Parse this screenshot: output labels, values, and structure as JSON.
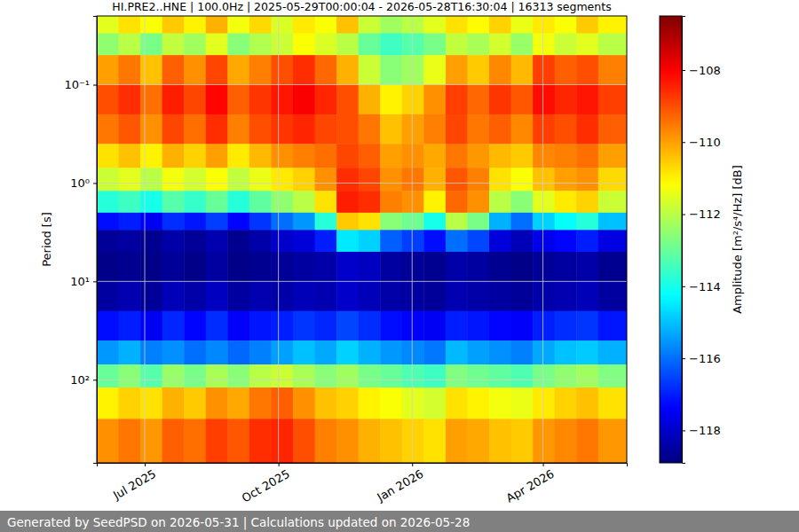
{
  "chart_data": {
    "type": "heatmap",
    "title": "HI.PRE2..HNE | 100.0Hz | 2025-05-29T00:00:04 - 2026-05-28T16:30:04 | 16313 segments",
    "y_label": "Period [s]",
    "log": "y",
    "grid": true,
    "xlim": [
      "2025-05-29T00:00:04",
      "2026-05-28T16:30:04"
    ],
    "xticks": [
      {
        "value": "2025-07-01",
        "label": "Jul 2025"
      },
      {
        "value": "2025-10-01",
        "label": "Oct 2025"
      },
      {
        "value": "2026-01-01",
        "label": "Jan 2026"
      },
      {
        "value": "2026-04-01",
        "label": "Apr 2026"
      }
    ],
    "ylim": [
      0.02,
      700
    ],
    "yticks": [
      {
        "value": 0.1,
        "label": "10⁻¹"
      },
      {
        "value": 1,
        "label": "10⁰"
      },
      {
        "value": 10,
        "label": "10¹"
      },
      {
        "value": 100,
        "label": "10²"
      }
    ],
    "x_bins": [
      "2025-05-29T00:00:04",
      "2025-06-13",
      "2025-06-28",
      "2025-07-13",
      "2025-07-28",
      "2025-08-12",
      "2025-08-27",
      "2025-09-11",
      "2025-09-26",
      "2025-10-11",
      "2025-10-26",
      "2025-11-10",
      "2025-11-25",
      "2025-12-10",
      "2025-12-25",
      "2026-01-09",
      "2026-01-24",
      "2026-02-08",
      "2026-02-23",
      "2026-03-10",
      "2026-03-25",
      "2026-04-09",
      "2026-04-24",
      "2026-05-09",
      "2026-05-28T16:30:04"
    ],
    "y_bins": [
      0.02,
      0.03,
      0.05,
      0.1,
      0.2,
      0.4,
      0.7,
      1.2,
      2,
      3,
      5,
      10,
      20,
      40,
      70,
      120,
      250,
      700
    ],
    "values": [
      [
        -111.5,
        -110.8,
        -111.2,
        -110.5,
        -111.0,
        -110.2,
        -111.3,
        -110.7,
        -111.6,
        -110.9,
        -111.2,
        -110.4,
        -111.8,
        -112.3,
        -112.0,
        -111.5,
        -110.8,
        -111.1,
        -110.6,
        -111.4,
        -110.9,
        -111.2,
        -110.5,
        -111.0
      ],
      [
        -112.5,
        -112.0,
        -112.8,
        -111.9,
        -112.3,
        -111.5,
        -112.6,
        -112.1,
        -111.8,
        -111.2,
        -111.6,
        -112.0,
        -113.0,
        -113.5,
        -113.2,
        -112.8,
        -111.9,
        -112.2,
        -111.7,
        -112.4,
        -111.3,
        -111.8,
        -111.5,
        -112.0
      ],
      [
        -110.0,
        -109.5,
        -110.4,
        -109.2,
        -109.8,
        -108.9,
        -110.1,
        -109.6,
        -109.0,
        -108.6,
        -109.3,
        -110.2,
        -111.8,
        -112.6,
        -112.3,
        -111.4,
        -110.0,
        -110.5,
        -109.7,
        -110.3,
        -108.8,
        -109.2,
        -109.0,
        -109.6
      ],
      [
        -109.0,
        -108.6,
        -109.4,
        -108.4,
        -108.9,
        -108.1,
        -109.2,
        -108.7,
        -108.3,
        -108.0,
        -108.5,
        -109.0,
        -110.2,
        -111.0,
        -110.6,
        -109.8,
        -108.8,
        -109.3,
        -108.7,
        -109.1,
        -108.2,
        -108.5,
        -108.3,
        -108.8
      ],
      [
        -109.5,
        -109.1,
        -109.8,
        -108.9,
        -109.4,
        -108.6,
        -109.6,
        -109.0,
        -108.7,
        -108.5,
        -108.9,
        -109.0,
        -109.5,
        -110.4,
        -110.0,
        -109.6,
        -108.9,
        -109.5,
        -109.2,
        -109.7,
        -108.8,
        -109.0,
        -108.6,
        -109.2
      ],
      [
        -110.8,
        -110.4,
        -111.0,
        -110.2,
        -110.6,
        -110.0,
        -110.9,
        -110.3,
        -109.8,
        -109.6,
        -109.4,
        -108.9,
        -109.2,
        -110.0,
        -109.8,
        -110.1,
        -109.5,
        -109.9,
        -110.3,
        -110.5,
        -109.7,
        -109.6,
        -109.4,
        -110.0
      ],
      [
        -111.8,
        -111.5,
        -112.0,
        -111.3,
        -111.7,
        -111.2,
        -111.9,
        -111.4,
        -110.9,
        -110.6,
        -109.8,
        -108.6,
        -108.9,
        -109.8,
        -109.5,
        -110.2,
        -109.1,
        -109.6,
        -110.8,
        -111.2,
        -110.4,
        -110.0,
        -109.8,
        -110.7
      ],
      [
        -113.8,
        -113.5,
        -114.0,
        -113.2,
        -113.6,
        -113.0,
        -113.8,
        -113.1,
        -112.5,
        -112.0,
        -110.8,
        -108.4,
        -108.6,
        -109.6,
        -109.8,
        -111.0,
        -109.3,
        -109.8,
        -112.0,
        -112.6,
        -111.5,
        -110.9,
        -110.6,
        -111.8
      ],
      [
        -117.2,
        -117.0,
        -117.5,
        -116.8,
        -117.1,
        -116.6,
        -117.3,
        -116.7,
        -116.0,
        -115.5,
        -113.8,
        -110.5,
        -110.8,
        -112.6,
        -112.9,
        -114.0,
        -112.0,
        -112.8,
        -115.2,
        -116.0,
        -114.8,
        -114.2,
        -113.8,
        -115.0
      ],
      [
        -118.6,
        -118.5,
        -118.7,
        -118.4,
        -118.6,
        -118.3,
        -118.7,
        -118.4,
        -118.0,
        -117.8,
        -117.0,
        -114.5,
        -114.8,
        -116.2,
        -116.6,
        -117.2,
        -116.0,
        -116.5,
        -117.8,
        -118.2,
        -117.6,
        -117.3,
        -117.0,
        -117.7
      ],
      [
        -118.8,
        -118.7,
        -118.8,
        -118.6,
        -118.8,
        -118.5,
        -118.8,
        -118.7,
        -118.6,
        -118.5,
        -118.4,
        -118.0,
        -118.1,
        -118.5,
        -118.6,
        -118.7,
        -118.4,
        -118.5,
        -118.7,
        -118.8,
        -118.6,
        -118.5,
        -118.4,
        -118.7
      ],
      [
        -118.5,
        -118.3,
        -118.6,
        -118.2,
        -118.4,
        -118.1,
        -118.5,
        -118.3,
        -118.4,
        -118.2,
        -118.3,
        -118.0,
        -118.2,
        -118.4,
        -118.5,
        -118.6,
        -118.3,
        -118.4,
        -118.5,
        -118.6,
        -118.4,
        -118.3,
        -118.2,
        -118.5
      ],
      [
        -117.2,
        -117.0,
        -117.5,
        -116.9,
        -117.3,
        -116.8,
        -117.4,
        -117.1,
        -117.0,
        -116.7,
        -116.9,
        -116.5,
        -116.8,
        -117.2,
        -117.4,
        -117.5,
        -117.0,
        -117.1,
        -117.3,
        -117.4,
        -117.0,
        -116.8,
        -116.7,
        -117.1
      ],
      [
        -115.5,
        -115.2,
        -115.8,
        -115.6,
        -116.0,
        -115.7,
        -116.1,
        -115.8,
        -115.4,
        -115.0,
        -115.3,
        -114.8,
        -115.2,
        -115.5,
        -115.7,
        -115.9,
        -115.1,
        -115.4,
        -115.6,
        -115.8,
        -115.3,
        -115.0,
        -114.9,
        -115.2
      ],
      [
        -113.0,
        -112.6,
        -113.2,
        -112.4,
        -112.8,
        -112.2,
        -112.6,
        -112.0,
        -111.8,
        -112.2,
        -112.6,
        -112.3,
        -112.8,
        -113.0,
        -113.3,
        -113.5,
        -112.7,
        -112.9,
        -113.1,
        -113.3,
        -112.8,
        -112.5,
        -112.3,
        -112.7
      ],
      [
        -111.0,
        -110.6,
        -110.8,
        -110.2,
        -110.5,
        -109.8,
        -110.1,
        -109.5,
        -109.2,
        -109.8,
        -110.4,
        -110.6,
        -111.0,
        -111.2,
        -111.5,
        -111.7,
        -110.8,
        -111.0,
        -111.3,
        -111.4,
        -110.9,
        -110.6,
        -110.4,
        -110.8
      ],
      [
        -109.8,
        -109.5,
        -109.9,
        -109.2,
        -109.4,
        -108.8,
        -109.1,
        -108.6,
        -108.5,
        -109.0,
        -109.6,
        -109.8,
        -110.2,
        -110.4,
        -110.6,
        -110.8,
        -110.0,
        -110.1,
        -110.4,
        -110.5,
        -109.9,
        -109.7,
        -109.5,
        -109.9
      ]
    ],
    "colorbar": {
      "label": "Amplitude [m²/s⁴/Hz] [dB]",
      "range": [
        -118.9,
        -106.5
      ],
      "ticks": [
        {
          "value": -108,
          "label": "−108"
        },
        {
          "value": -110,
          "label": "−110"
        },
        {
          "value": -112,
          "label": "−112"
        },
        {
          "value": -114,
          "label": "−114"
        },
        {
          "value": -116,
          "label": "−116"
        },
        {
          "value": -118,
          "label": "−118"
        }
      ]
    }
  },
  "footer": "Generated by SeedPSD on 2026-05-31 | Calculations updated on 2026-05-28"
}
